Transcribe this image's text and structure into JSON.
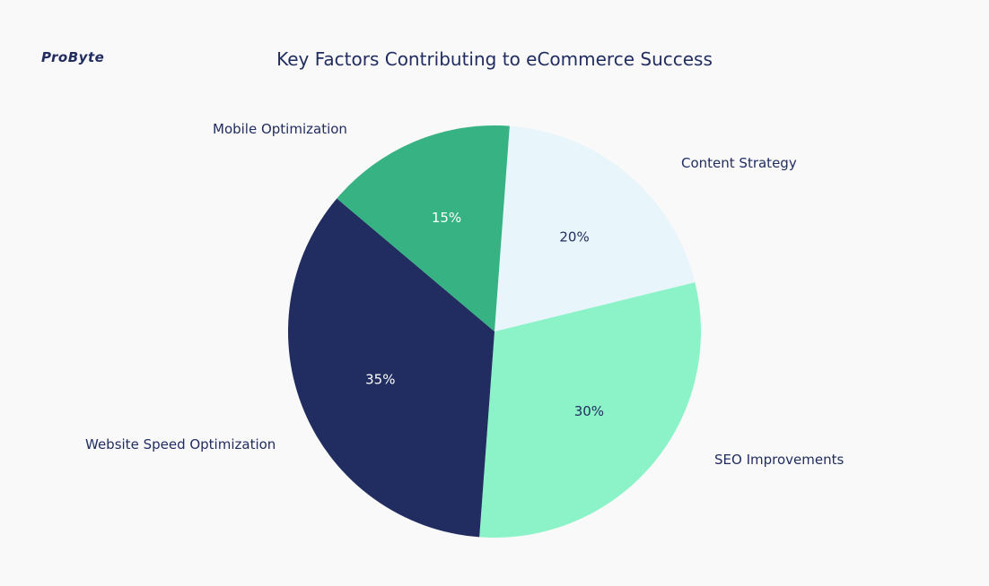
{
  "logo_text": "ProByte",
  "chart_data": {
    "type": "pie",
    "title": "Key Factors Contributing to eCommerce Success",
    "categories": [
      "Content Strategy",
      "SEO Improvements",
      "Website Speed Optimization",
      "Mobile Optimization"
    ],
    "values": [
      20,
      30,
      35,
      15
    ],
    "value_labels": [
      "20%",
      "30%",
      "35%",
      "15%"
    ],
    "colors": [
      "#E8F5FA",
      "#8CF3C8",
      "#212D60",
      "#36B283"
    ],
    "label_colors": [
      "#212D60",
      "#212D60",
      "#ffffff",
      "#ffffff"
    ],
    "direction": "clockwise",
    "legend": "none"
  }
}
